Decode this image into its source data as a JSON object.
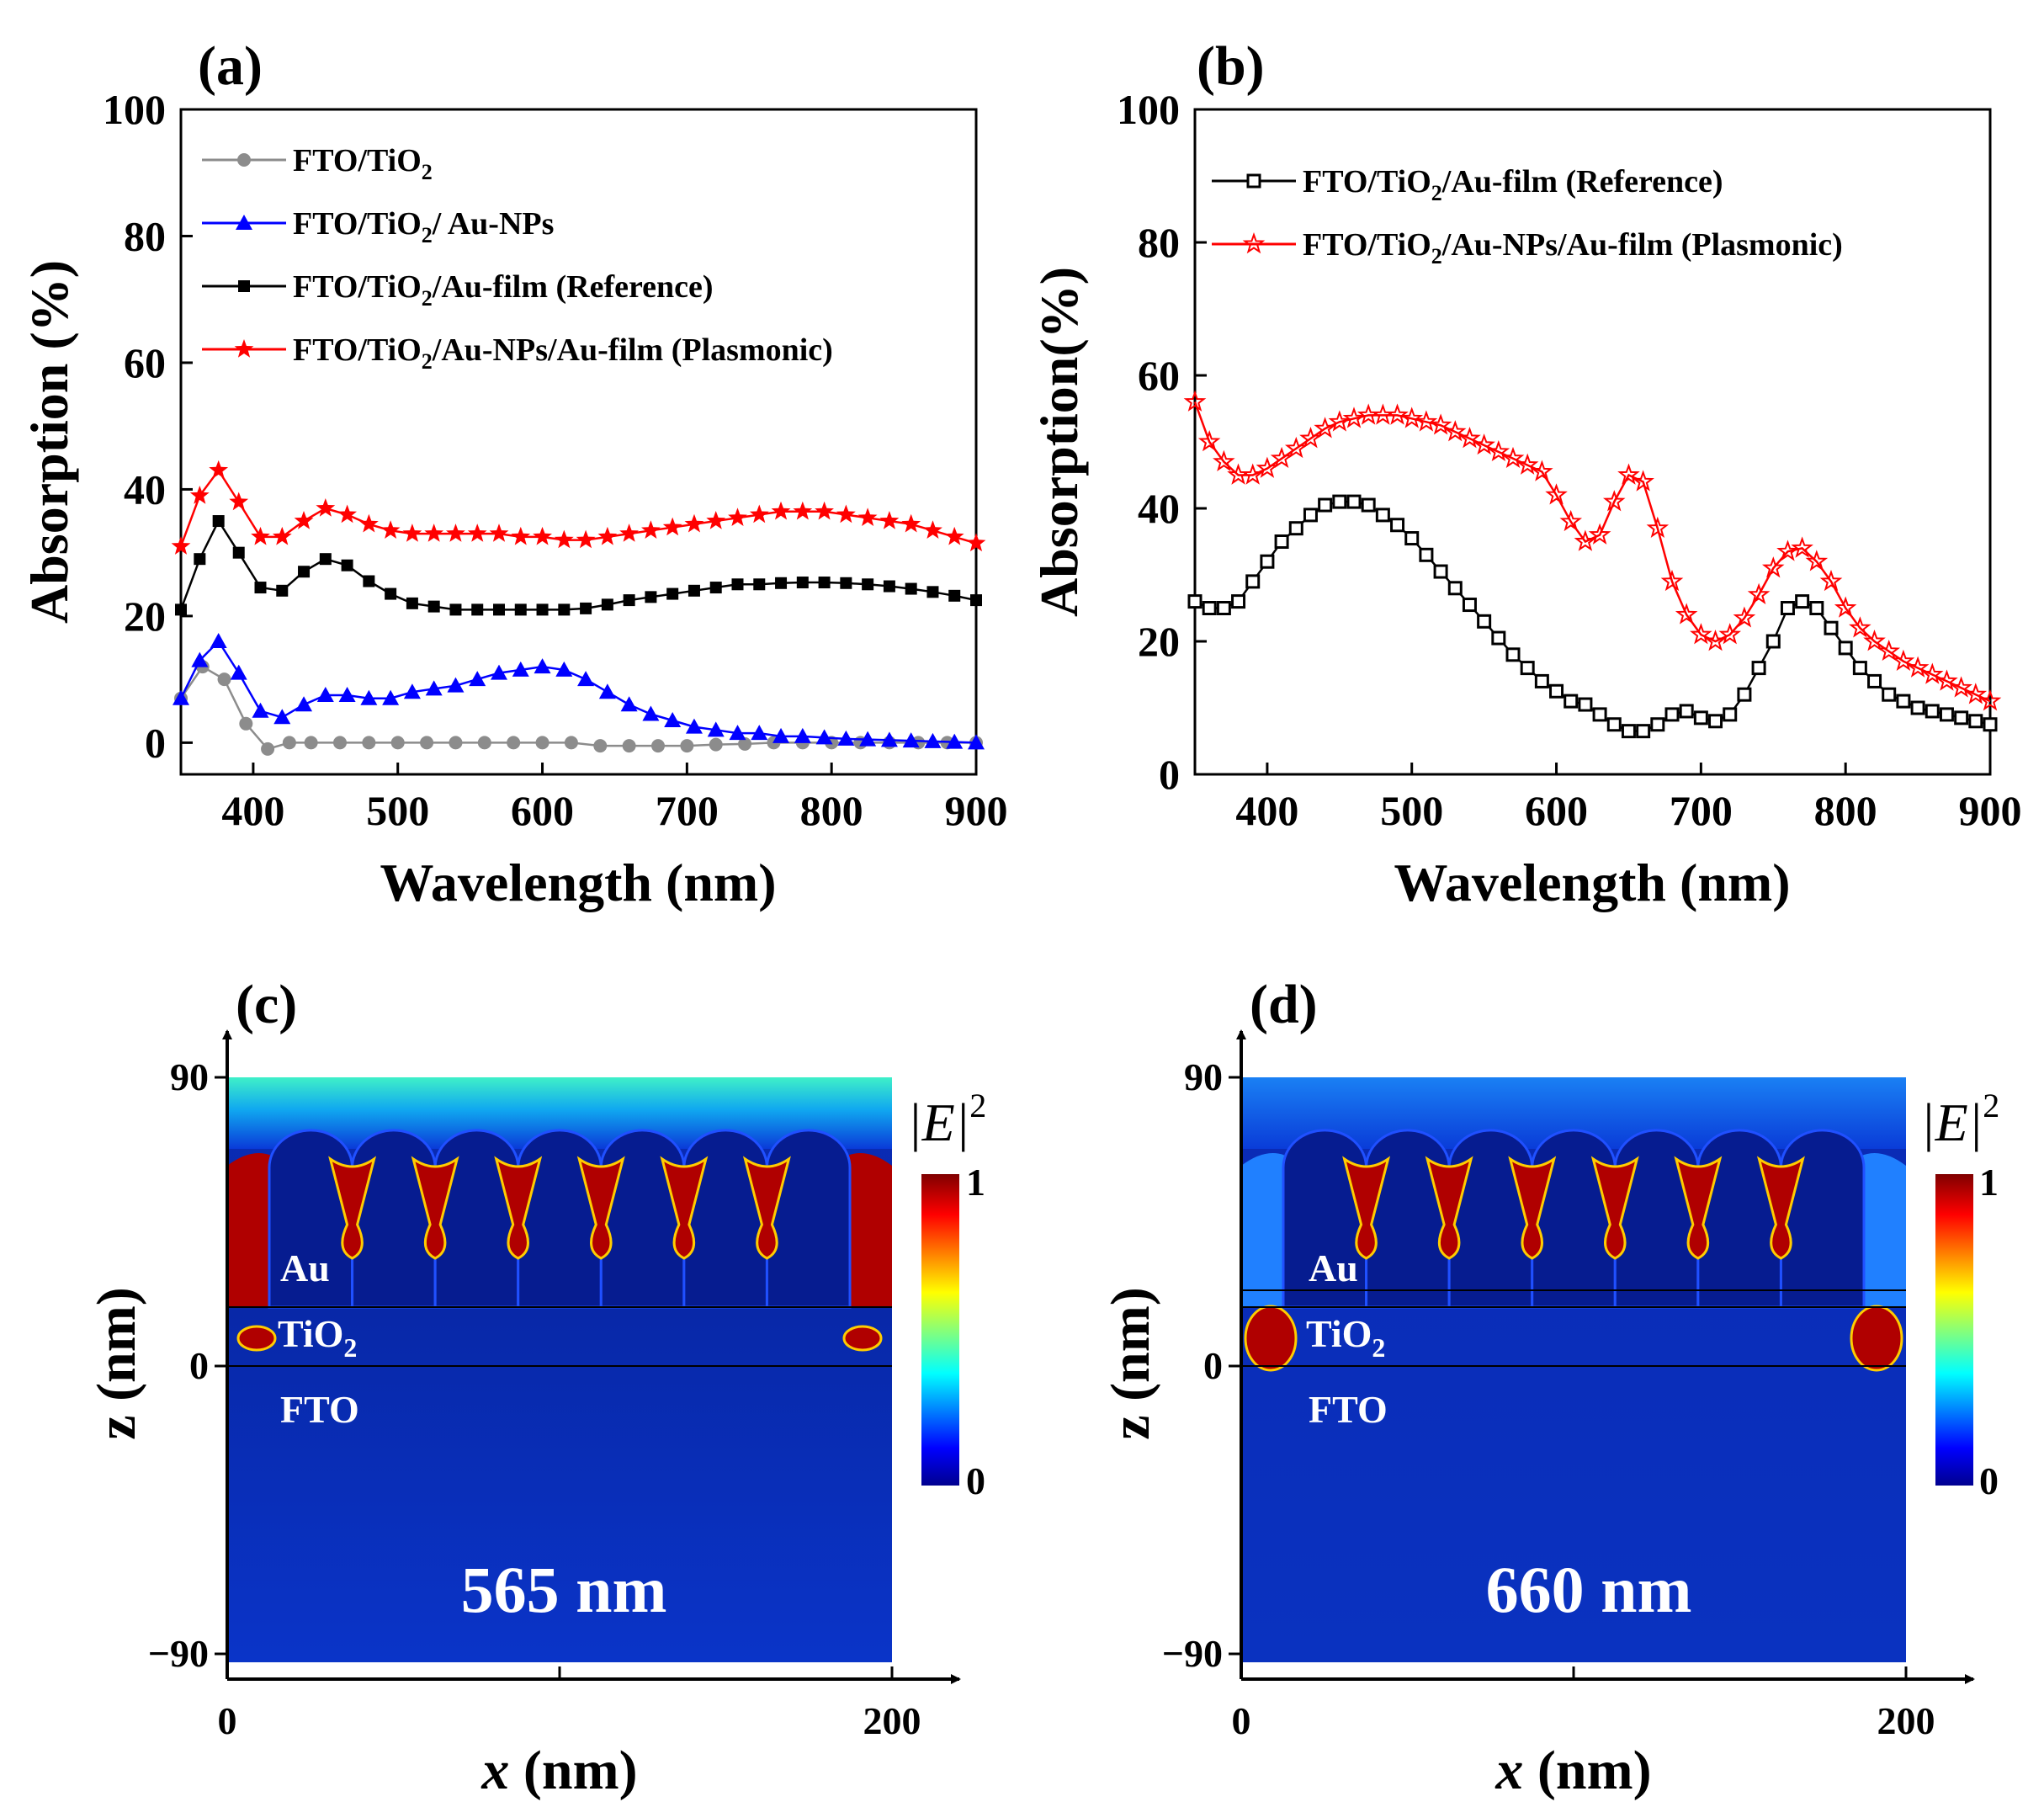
{
  "figure": {
    "label": "Absorption spectra and electric field distributions"
  },
  "colors": {
    "red": "#ff0000",
    "black": "#000000",
    "blue": "#0000ff",
    "gray": "#8c8c8c"
  },
  "chart_data": [
    {
      "panel": "(a)",
      "type": "line",
      "xlabel": "Wavelength (nm)",
      "ylabel": "Absorption (%)",
      "xlim": [
        350,
        900
      ],
      "ylim": [
        -5,
        100
      ],
      "xticks": [
        400,
        500,
        600,
        700,
        800,
        900
      ],
      "yticks": [
        0,
        20,
        40,
        60,
        80,
        100
      ],
      "legend_position": "top-left",
      "series": [
        {
          "name": "FTO/TiO2",
          "legend_main": "FTO/TiO",
          "legend_sub": "2",
          "legend_tail": "",
          "color": "#8c8c8c",
          "marker": "circle",
          "x": [
            350,
            365,
            380,
            395,
            410,
            425,
            440,
            460,
            480,
            500,
            520,
            540,
            560,
            580,
            600,
            620,
            640,
            660,
            680,
            700,
            720,
            740,
            760,
            780,
            800,
            820,
            840,
            860,
            880,
            900
          ],
          "y": [
            7,
            12,
            10,
            3,
            -1,
            0,
            0,
            0,
            0,
            0,
            0,
            0,
            0,
            0,
            0,
            0,
            -0.5,
            -0.5,
            -0.5,
            -0.5,
            -0.3,
            -0.2,
            0,
            0,
            0,
            0,
            0,
            0,
            0,
            0
          ]
        },
        {
          "name": "FTO/TiO2/ Au-NPs",
          "legend_main": "FTO/TiO",
          "legend_sub": "2",
          "legend_tail": "/ Au-NPs",
          "color": "#0000ff",
          "marker": "triangle",
          "x": [
            350,
            363,
            376,
            390,
            405,
            420,
            435,
            450,
            465,
            480,
            495,
            510,
            525,
            540,
            555,
            570,
            585,
            600,
            615,
            630,
            645,
            660,
            675,
            690,
            705,
            720,
            735,
            750,
            765,
            780,
            795,
            810,
            825,
            840,
            855,
            870,
            885,
            900
          ],
          "y": [
            7,
            13,
            16,
            11,
            5,
            4,
            6,
            7.5,
            7.5,
            7,
            7,
            8,
            8.5,
            9,
            10,
            11,
            11.5,
            12,
            11.5,
            10,
            8,
            6,
            4.5,
            3.5,
            2.5,
            2,
            1.5,
            1.5,
            1,
            1,
            0.8,
            0.6,
            0.5,
            0.4,
            0.3,
            0.2,
            0.1,
            0
          ]
        },
        {
          "name": "FTO/TiO2/Au-film (Reference)",
          "legend_main": "FTO/TiO",
          "legend_sub": "2",
          "legend_tail": "/Au-film (Reference)",
          "color": "#000000",
          "marker": "square",
          "x": [
            350,
            363,
            376,
            390,
            405,
            420,
            435,
            450,
            465,
            480,
            495,
            510,
            525,
            540,
            555,
            570,
            585,
            600,
            615,
            630,
            645,
            660,
            675,
            690,
            705,
            720,
            735,
            750,
            765,
            780,
            795,
            810,
            825,
            840,
            855,
            870,
            885,
            900
          ],
          "y": [
            21,
            29,
            35,
            30,
            24.5,
            24,
            27,
            29,
            28,
            25.5,
            23.5,
            22,
            21.5,
            21,
            21,
            21,
            21,
            21,
            21,
            21.2,
            21.8,
            22.5,
            23,
            23.5,
            24,
            24.5,
            25,
            25,
            25.2,
            25.3,
            25.3,
            25.2,
            25,
            24.7,
            24.3,
            23.8,
            23.2,
            22.5
          ]
        },
        {
          "name": "FTO/TiO2/Au-NPs/Au-film (Plasmonic)",
          "legend_main": "FTO/TiO",
          "legend_sub": "2",
          "legend_tail": "/Au-NPs/Au-film (Plasmonic)",
          "color": "#ff0000",
          "marker": "star",
          "x": [
            350,
            363,
            376,
            390,
            405,
            420,
            435,
            450,
            465,
            480,
            495,
            510,
            525,
            540,
            555,
            570,
            585,
            600,
            615,
            630,
            645,
            660,
            675,
            690,
            705,
            720,
            735,
            750,
            765,
            780,
            795,
            810,
            825,
            840,
            855,
            870,
            885,
            900
          ],
          "y": [
            31,
            39,
            43,
            38,
            32.5,
            32.5,
            35,
            37,
            36,
            34.5,
            33.5,
            33,
            33,
            33,
            33,
            33,
            32.5,
            32.5,
            32,
            32,
            32.5,
            33,
            33.5,
            34,
            34.5,
            35,
            35.5,
            36,
            36.5,
            36.5,
            36.5,
            36,
            35.5,
            35,
            34.5,
            33.5,
            32.5,
            31.5
          ]
        }
      ]
    },
    {
      "panel": "(b)",
      "type": "line",
      "xlabel": "Wavelength (nm)",
      "ylabel": "Absorption(%)",
      "xlim": [
        350,
        900
      ],
      "ylim": [
        0,
        100
      ],
      "xticks": [
        400,
        500,
        600,
        700,
        800,
        900
      ],
      "yticks": [
        0,
        20,
        40,
        60,
        80,
        100
      ],
      "legend_position": "top-left",
      "series": [
        {
          "name": "FTO/TiO2/Au-film (Reference)",
          "legend_main": "FTO/TiO",
          "legend_sub": "2",
          "legend_tail": "/Au-film (Reference)",
          "color": "#000000",
          "marker": "open-square",
          "x": [
            350,
            360,
            370,
            380,
            390,
            400,
            410,
            420,
            430,
            440,
            450,
            460,
            470,
            480,
            490,
            500,
            510,
            520,
            530,
            540,
            550,
            560,
            570,
            580,
            590,
            600,
            610,
            620,
            630,
            640,
            650,
            660,
            670,
            680,
            690,
            700,
            710,
            720,
            730,
            740,
            750,
            760,
            770,
            780,
            790,
            800,
            810,
            820,
            830,
            840,
            850,
            860,
            870,
            880,
            890,
            900
          ],
          "y": [
            26,
            25,
            25,
            26,
            29,
            32,
            35,
            37,
            39,
            40.5,
            41,
            41,
            40.5,
            39,
            37.5,
            35.5,
            33,
            30.5,
            28,
            25.5,
            23,
            20.5,
            18,
            16,
            14,
            12.5,
            11,
            10.5,
            9,
            7.5,
            6.5,
            6.5,
            7.5,
            9,
            9.5,
            8.5,
            8,
            9,
            12,
            16,
            20,
            25,
            26,
            25,
            22,
            19,
            16,
            14,
            12,
            11,
            10,
            9.5,
            9,
            8.5,
            8,
            7.5
          ]
        },
        {
          "name": "FTO/TiO2/Au-NPs/Au-film (Plasmonic)",
          "legend_main": "FTO/TiO",
          "legend_sub": "2",
          "legend_tail": "/Au-NPs/Au-film (Plasmonic)",
          "color": "#ff0000",
          "marker": "open-star",
          "x": [
            350,
            360,
            370,
            380,
            390,
            400,
            410,
            420,
            430,
            440,
            450,
            460,
            470,
            480,
            490,
            500,
            510,
            520,
            530,
            540,
            550,
            560,
            570,
            580,
            590,
            600,
            610,
            620,
            630,
            640,
            650,
            660,
            670,
            680,
            690,
            700,
            710,
            720,
            730,
            740,
            750,
            760,
            770,
            780,
            790,
            800,
            810,
            820,
            830,
            840,
            850,
            860,
            870,
            880,
            890,
            900
          ],
          "y": [
            56,
            50,
            47,
            45,
            45,
            46,
            47.5,
            49,
            50.5,
            52,
            53,
            53.5,
            54,
            54,
            54,
            53.5,
            53,
            52.5,
            51.5,
            50.5,
            49.5,
            48.5,
            47.5,
            46.5,
            45.5,
            42,
            38,
            35,
            36,
            41,
            45,
            44,
            37,
            29,
            24,
            21,
            20,
            21,
            23.5,
            27,
            31,
            33.5,
            34,
            32,
            29,
            25,
            22,
            20,
            18.5,
            17,
            16,
            15,
            14,
            13,
            12,
            11
          ]
        }
      ]
    }
  ],
  "panel_c": {
    "label": "(c)",
    "wavelength": "565 nm",
    "layers": [
      "Au",
      "TiO",
      "FTO"
    ],
    "layer_sub": "2",
    "x_ticks": [
      "0",
      "200"
    ],
    "z_ticks": [
      "90",
      "0",
      "−90"
    ],
    "xlabel_var": "x",
    "xlabel_unit": " (nm)",
    "zlabel": "z (nm)",
    "colorbar": {
      "title": "|E|",
      "sup": "2",
      "max": "1",
      "min": "0"
    }
  },
  "panel_d": {
    "label": "(d)",
    "wavelength": "660 nm",
    "layers": [
      "Au",
      "TiO",
      "FTO"
    ],
    "layer_sub": "2",
    "x_ticks": [
      "0",
      "200"
    ],
    "z_ticks": [
      "90",
      "0",
      "−90"
    ],
    "xlabel_var": "x",
    "xlabel_unit": " (nm)",
    "zlabel": "z (nm)",
    "colorbar": {
      "title": "|E|",
      "sup": "2",
      "max": "1",
      "min": "0"
    }
  }
}
